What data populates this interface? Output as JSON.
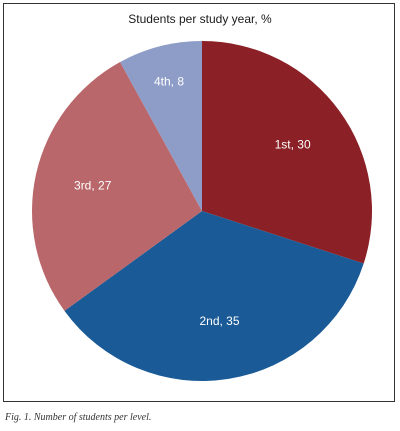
{
  "chart_data": {
    "type": "pie",
    "title": "Students per study year, %",
    "categories": [
      "1st",
      "2nd",
      "3rd",
      "4th"
    ],
    "values": [
      30,
      35,
      27,
      8
    ],
    "labels": [
      "1st, 30",
      "2nd, 35",
      "3rd, 27",
      "4th, 8"
    ],
    "colors": [
      "#8b2026",
      "#1a5a96",
      "#b9676a",
      "#8e9cc8"
    ],
    "label_colors": [
      "#ffffff",
      "#ffffff",
      "#ffffff",
      "#ffffff"
    ],
    "start": "12 o'clock",
    "direction": "clockwise",
    "legend": "none"
  },
  "caption": "Fig. 1. Number of students per level."
}
